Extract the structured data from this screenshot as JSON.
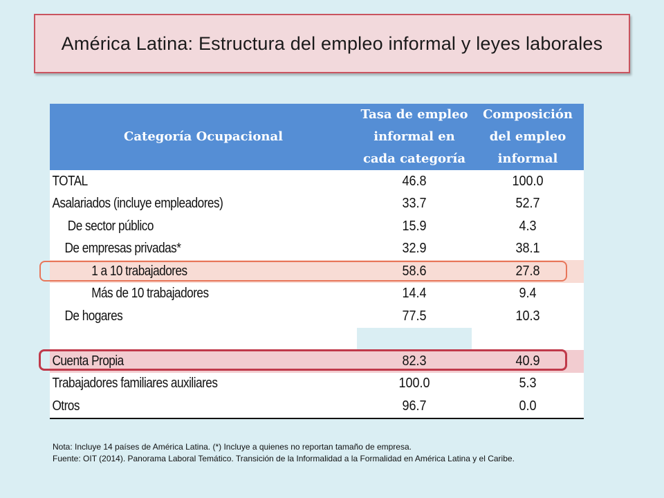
{
  "title": "América Latina: Estructura del empleo informal y leyes laborales",
  "table": {
    "headers": [
      "Categoría Ocupacional",
      "Tasa de empleo informal en cada categoría",
      "Composición del empleo informal"
    ],
    "rows": [
      {
        "label": "TOTAL",
        "rate": "46.8",
        "share": "100.0"
      },
      {
        "label": "Asalariados (incluye empleadores)",
        "rate": "33.7",
        "share": "52.7"
      },
      {
        "label": "De sector público",
        "rate": "15.9",
        "share": "4.3"
      },
      {
        "label": "De empresas privadas*",
        "rate": "32.9",
        "share": "38.1"
      },
      {
        "label": "1 a 10 trabajadores",
        "rate": "58.6",
        "share": "27.8"
      },
      {
        "label": "Más de 10 trabajadores",
        "rate": "14.4",
        "share": "9.4"
      },
      {
        "label": "De hogares",
        "rate": "77.5",
        "share": "10.3"
      },
      {
        "label": "Cuenta Propia",
        "rate": "82.3",
        "share": "40.9"
      },
      {
        "label": "Trabajadores familiares auxiliares",
        "rate": "100.0",
        "share": "5.3"
      },
      {
        "label": "Otros",
        "rate": "96.7",
        "share": "0.0"
      }
    ]
  },
  "notes": {
    "nota": "Nota: Incluye 14 países de América Latina. (*) Incluye a quienes no reportan tamaño de empresa.",
    "fuente": "Fuente: OIT (2014). Panorama Laboral Temático. Transición de la Informalidad a la Formalidad en América Latina y el Caribe."
  },
  "colors": {
    "background": "#daeef3",
    "title_fill": "#f2d9dc",
    "title_border": "#c9545f",
    "header_fill": "#558ed5",
    "highlight_orange": "#e8765a",
    "highlight_red": "#c0394a"
  }
}
